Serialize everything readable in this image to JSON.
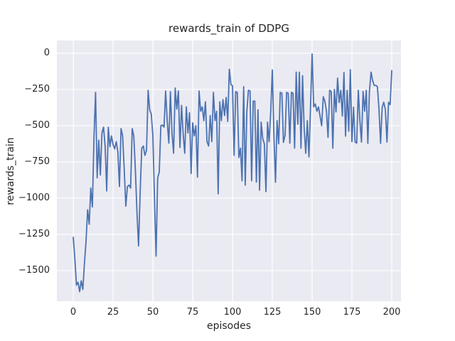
{
  "figure": {
    "title": "rewards_train of DDPG"
  },
  "chart_data": {
    "type": "line",
    "title": "rewards_train of DDPG",
    "xlabel": "episodes",
    "ylabel": "rewards_train",
    "grid": true,
    "legend": "none",
    "x_start": 0,
    "x_step": 1,
    "xlim": [
      -10.3,
      205.8
    ],
    "ylim": [
      -1711,
      88
    ],
    "x_ticks": {
      "values": [
        0,
        25,
        50,
        75,
        100,
        125,
        150,
        175,
        200
      ],
      "labels": [
        "0",
        "25",
        "50",
        "75",
        "100",
        "125",
        "150",
        "175",
        "200"
      ]
    },
    "y_ticks": {
      "values": [
        0,
        -250,
        -500,
        -750,
        -1000,
        -1250,
        -1500
      ],
      "labels": [
        "0",
        "−250",
        "−500",
        "−750",
        "−1000",
        "−1250",
        "−1500"
      ]
    },
    "series_name": "rewards_train",
    "values": [
      -1270,
      -1420,
      -1600,
      -1580,
      -1645,
      -1570,
      -1630,
      -1450,
      -1300,
      -1080,
      -1180,
      -930,
      -1060,
      -580,
      -270,
      -860,
      -600,
      -840,
      -550,
      -510,
      -640,
      -950,
      -510,
      -645,
      -570,
      -630,
      -660,
      -610,
      -680,
      -920,
      -520,
      -570,
      -800,
      -1055,
      -920,
      -910,
      -930,
      -520,
      -570,
      -805,
      -1100,
      -1330,
      -960,
      -655,
      -640,
      -705,
      -670,
      -255,
      -390,
      -420,
      -570,
      -1000,
      -1400,
      -860,
      -820,
      -500,
      -495,
      -510,
      -260,
      -470,
      -620,
      -265,
      -550,
      -690,
      -240,
      -385,
      -260,
      -650,
      -360,
      -555,
      -690,
      -370,
      -550,
      -410,
      -830,
      -480,
      -570,
      -500,
      -855,
      -260,
      -400,
      -370,
      -465,
      -335,
      -610,
      -640,
      -430,
      -610,
      -270,
      -465,
      -400,
      -970,
      -335,
      -465,
      -320,
      -430,
      -305,
      -470,
      -110,
      -215,
      -225,
      -705,
      -265,
      -270,
      -720,
      -655,
      -880,
      -230,
      -910,
      -405,
      -255,
      -260,
      -880,
      -330,
      -330,
      -890,
      -390,
      -945,
      -475,
      -590,
      -625,
      -955,
      -475,
      -610,
      -405,
      -115,
      -565,
      -890,
      -465,
      -625,
      -270,
      -275,
      -615,
      -565,
      -270,
      -275,
      -620,
      -270,
      -275,
      -655,
      -130,
      -490,
      -130,
      -655,
      -155,
      -520,
      -690,
      -465,
      -715,
      -370,
      -5,
      -370,
      -350,
      -400,
      -370,
      -435,
      -500,
      -300,
      -330,
      -400,
      -580,
      -255,
      -265,
      -655,
      -250,
      -405,
      -172,
      -340,
      -255,
      -433,
      -133,
      -572,
      -255,
      -538,
      -113,
      -610,
      -372,
      -613,
      -620,
      -255,
      -465,
      -613,
      -263,
      -400,
      -255,
      -622,
      -263,
      -130,
      -188,
      -222,
      -222,
      -230,
      -388,
      -622,
      -372,
      -338,
      -388,
      -613,
      -338,
      -355,
      -120
    ],
    "colors": {
      "line": "#4C72B0",
      "plot_background": "#EAEAF2",
      "grid": "#FFFFFF",
      "text": "#262626",
      "figure_background": "#FFFFFF"
    }
  }
}
